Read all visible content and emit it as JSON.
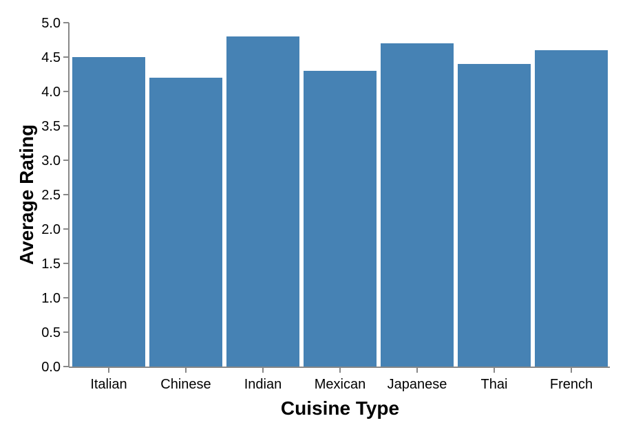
{
  "chart_data": {
    "type": "bar",
    "title": "",
    "xlabel": "Cuisine Type",
    "ylabel": "Average Rating",
    "categories": [
      "Italian",
      "Chinese",
      "Indian",
      "Mexican",
      "Japanese",
      "Thai",
      "French"
    ],
    "values": [
      4.5,
      4.2,
      4.8,
      4.3,
      4.7,
      4.4,
      4.6
    ],
    "ylim": [
      0,
      5
    ],
    "yticks": [
      "0.0",
      "0.5",
      "1.0",
      "1.5",
      "2.0",
      "2.5",
      "3.0",
      "3.5",
      "4.0",
      "4.5",
      "5.0"
    ],
    "grid": false,
    "legend": "none",
    "bar_color": "#4682b4"
  }
}
